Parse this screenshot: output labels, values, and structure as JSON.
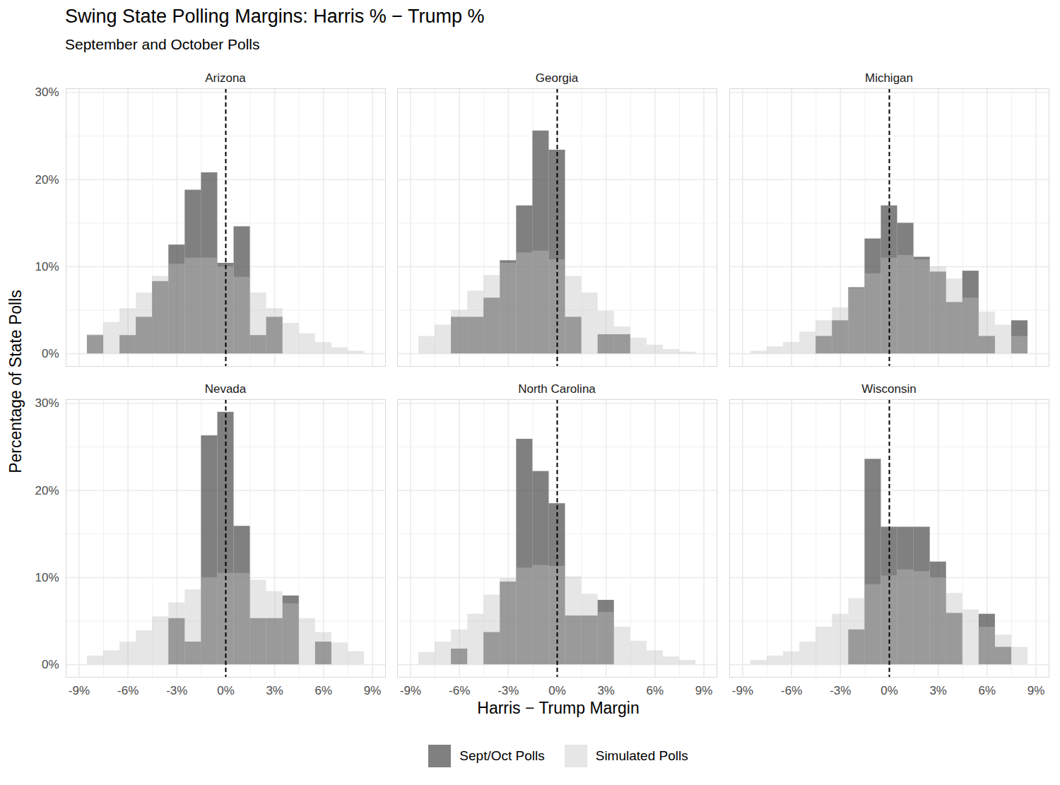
{
  "chart_data": {
    "type": "histogram",
    "title": "Swing State Polling Margins: Harris % − Trump %",
    "subtitle": "September and October Polls",
    "xlabel": "Harris − Trump Margin",
    "ylabel": "Percentage of State Polls",
    "bins": [
      -8.5,
      -7.5,
      -6.5,
      -5.5,
      -4.5,
      -3.5,
      -2.5,
      -1.5,
      -0.5,
      0.5,
      1.5,
      2.5,
      3.5,
      4.5,
      5.5,
      6.5,
      7.5,
      8.5
    ],
    "xlim": [
      -9.8,
      9.8
    ],
    "xticks": [
      {
        "value": -9,
        "label": "-9%"
      },
      {
        "value": -6,
        "label": "-6%"
      },
      {
        "value": -3,
        "label": "-3%"
      },
      {
        "value": 0,
        "label": "0%"
      },
      {
        "value": 3,
        "label": "3%"
      },
      {
        "value": 6,
        "label": "6%"
      },
      {
        "value": 9,
        "label": "9%"
      }
    ],
    "ylim": [
      -1.45,
      30.45
    ],
    "yticks": [
      {
        "value": 0,
        "label": "0%"
      },
      {
        "value": 10,
        "label": "10%"
      },
      {
        "value": 20,
        "label": "20%"
      },
      {
        "value": 30,
        "label": "30%"
      }
    ],
    "reference_x": 0,
    "grid": true,
    "legend": "bottom",
    "panels": [
      {
        "title": "Arizona",
        "series": [
          {
            "name": "Sept/Oct Polls",
            "color": "#555555",
            "values": [
              2.1,
              0,
              2.1,
              4.2,
              8.3,
              12.5,
              18.8,
              20.8,
              10.4,
              14.6,
              2.1,
              4.2,
              0,
              0,
              0,
              0,
              0
            ]
          },
          {
            "name": "Simulated Polls",
            "color": "#c0c0c0",
            "values": [
              2.2,
              3.6,
              5.2,
              7.0,
              8.9,
              10.3,
              11.0,
              11.0,
              10.0,
              8.8,
              7.0,
              5.2,
              3.5,
              2.3,
              1.3,
              0.7,
              0.3
            ]
          }
        ]
      },
      {
        "title": "Georgia",
        "series": [
          {
            "name": "Sept/Oct Polls",
            "color": "#555555",
            "values": [
              0,
              0,
              4.2,
              4.2,
              6.4,
              10.7,
              17.0,
              25.6,
              23.4,
              4.2,
              0,
              2.2,
              2.2,
              0,
              0,
              0,
              0
            ]
          },
          {
            "name": "Simulated Polls",
            "color": "#c0c0c0",
            "values": [
              2.0,
              3.3,
              5.0,
              7.2,
              9.0,
              10.4,
              11.6,
              11.8,
              10.8,
              8.9,
              7.0,
              4.9,
              3.1,
              1.8,
              1.0,
              0.5,
              0.2
            ]
          }
        ]
      },
      {
        "title": "Michigan",
        "series": [
          {
            "name": "Sept/Oct Polls",
            "color": "#555555",
            "values": [
              0,
              0,
              0,
              0,
              2.0,
              3.8,
              7.6,
              13.2,
              17.0,
              15.0,
              11.1,
              9.4,
              5.9,
              9.5,
              2.0,
              0,
              3.8
            ]
          },
          {
            "name": "Simulated Polls",
            "color": "#c0c0c0",
            "values": [
              0.3,
              0.8,
              1.3,
              2.5,
              3.8,
              5.3,
              7.5,
              9.2,
              11.0,
              11.3,
              10.8,
              10.0,
              8.6,
              6.4,
              4.8,
              3.3,
              2.0
            ]
          }
        ]
      },
      {
        "title": "Nevada",
        "series": [
          {
            "name": "Sept/Oct Polls",
            "color": "#555555",
            "values": [
              0,
              0,
              0,
              0,
              0,
              5.3,
              2.6,
              26.3,
              29.0,
              15.9,
              5.3,
              5.3,
              7.9,
              0,
              2.6,
              0,
              0
            ]
          },
          {
            "name": "Simulated Polls",
            "color": "#c0c0c0",
            "values": [
              1.0,
              1.6,
              2.6,
              3.9,
              5.5,
              7.1,
              8.6,
              10.0,
              10.5,
              10.5,
              9.7,
              8.4,
              7.0,
              5.3,
              3.7,
              2.5,
              1.5
            ]
          }
        ]
      },
      {
        "title": "North Carolina",
        "series": [
          {
            "name": "Sept/Oct Polls",
            "color": "#555555",
            "values": [
              0,
              0,
              1.8,
              0,
              3.7,
              9.5,
              25.9,
              22.2,
              18.5,
              5.6,
              5.6,
              7.4,
              0,
              0,
              0,
              0,
              0
            ]
          },
          {
            "name": "Simulated Polls",
            "color": "#c0c0c0",
            "values": [
              1.4,
              2.6,
              4.0,
              5.8,
              8.0,
              9.9,
              11.1,
              11.4,
              11.3,
              10.1,
              8.1,
              6.0,
              4.3,
              2.7,
              1.6,
              0.9,
              0.5
            ]
          }
        ]
      },
      {
        "title": "Wisconsin",
        "series": [
          {
            "name": "Sept/Oct Polls",
            "color": "#555555",
            "values": [
              0,
              0,
              0,
              0,
              0,
              0,
              4.0,
              23.6,
              15.8,
              15.8,
              15.8,
              11.8,
              5.9,
              0,
              5.8,
              2.0,
              0
            ]
          },
          {
            "name": "Simulated Polls",
            "color": "#c0c0c0",
            "values": [
              0.5,
              1.0,
              1.5,
              2.6,
              4.3,
              5.8,
              7.6,
              9.2,
              10.2,
              10.9,
              10.7,
              10.0,
              8.2,
              6.3,
              4.3,
              3.4,
              2.0
            ]
          }
        ]
      }
    ]
  }
}
